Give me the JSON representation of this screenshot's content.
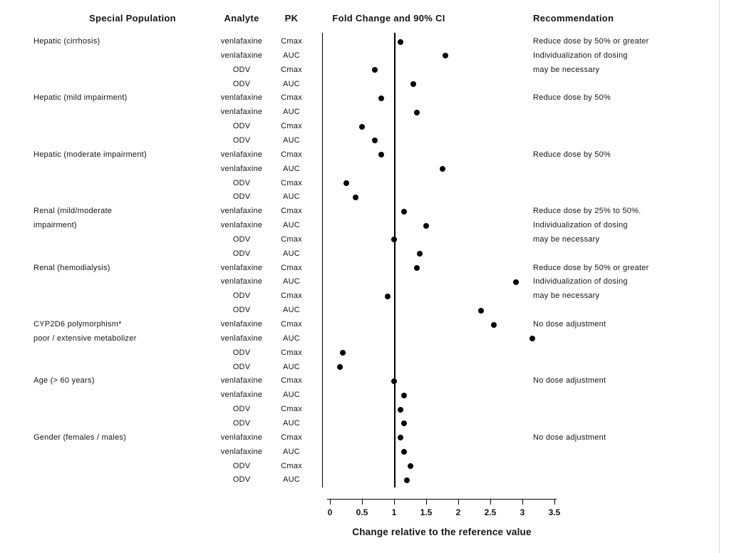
{
  "headers": {
    "population": "Special Population",
    "analyte": "Analyte",
    "pk": "PK",
    "fold_change": "Fold Change and 90% CI",
    "recommendation": "Recommendation"
  },
  "chart_data": {
    "type": "scatter",
    "title": "Fold Change and 90% CI",
    "xlabel": "Change relative to the reference value",
    "xlim": [
      -0.12,
      3.5
    ],
    "x_ticks": [
      0,
      0.5,
      1,
      1.5,
      2,
      2.5,
      3,
      3.5
    ],
    "reference_line_x": 1.0,
    "grid": false,
    "marker_color": "#000000",
    "rows": [
      {
        "population": "Hepatic (cirrhosis)",
        "analyte": "venlafaxine",
        "pk": "Cmax",
        "fold_change": 1.1,
        "recommendation": "Reduce dose by 50% or greater"
      },
      {
        "population": "",
        "analyte": "venlafaxine",
        "pk": "AUC",
        "fold_change": 1.8,
        "recommendation": "Individualization of dosing"
      },
      {
        "population": "",
        "analyte": "ODV",
        "pk": "Cmax",
        "fold_change": 0.7,
        "recommendation": "may be necessary"
      },
      {
        "population": "",
        "analyte": "ODV",
        "pk": "AUC",
        "fold_change": 1.3,
        "recommendation": ""
      },
      {
        "population": "Hepatic (mild impairment)",
        "analyte": "venlafaxine",
        "pk": "Cmax",
        "fold_change": 0.8,
        "recommendation": "Reduce dose by 50%"
      },
      {
        "population": "",
        "analyte": "venlafaxine",
        "pk": "AUC",
        "fold_change": 1.35,
        "recommendation": ""
      },
      {
        "population": "",
        "analyte": "ODV",
        "pk": "Cmax",
        "fold_change": 0.5,
        "recommendation": ""
      },
      {
        "population": "",
        "analyte": "ODV",
        "pk": "AUC",
        "fold_change": 0.7,
        "recommendation": ""
      },
      {
        "population": "Hepatic (moderate impairment)",
        "analyte": "venlafaxine",
        "pk": "Cmax",
        "fold_change": 0.8,
        "recommendation": "Reduce dose by 50%"
      },
      {
        "population": "",
        "analyte": "venlafaxine",
        "pk": "AUC",
        "fold_change": 1.75,
        "recommendation": ""
      },
      {
        "population": "",
        "analyte": "ODV",
        "pk": "Cmax",
        "fold_change": 0.25,
        "recommendation": ""
      },
      {
        "population": "",
        "analyte": "ODV",
        "pk": "AUC",
        "fold_change": 0.4,
        "recommendation": ""
      },
      {
        "population": "Renal (mild/moderate",
        "analyte": "venlafaxine",
        "pk": "Cmax",
        "fold_change": 1.15,
        "recommendation": "Reduce dose by 25% to 50%."
      },
      {
        "population": "impairment)",
        "analyte": "venlafaxine",
        "pk": "AUC",
        "fold_change": 1.5,
        "recommendation": "Individualization of dosing"
      },
      {
        "population": "",
        "analyte": "ODV",
        "pk": "Cmax",
        "fold_change": 1.0,
        "recommendation": "may be necessary"
      },
      {
        "population": "",
        "analyte": "ODV",
        "pk": "AUC",
        "fold_change": 1.4,
        "recommendation": ""
      },
      {
        "population": "Renal (hemodialysis)",
        "analyte": "venlafaxine",
        "pk": "Cmax",
        "fold_change": 1.35,
        "recommendation": "Reduce dose by 50% or greater"
      },
      {
        "population": "",
        "analyte": "venlafaxine",
        "pk": "AUC",
        "fold_change": 2.9,
        "recommendation": "Individualization of dosing"
      },
      {
        "population": "",
        "analyte": "ODV",
        "pk": "Cmax",
        "fold_change": 0.9,
        "recommendation": "may be necessary"
      },
      {
        "population": "",
        "analyte": "ODV",
        "pk": "AUC",
        "fold_change": 2.35,
        "recommendation": ""
      },
      {
        "population": "CYP2D6 polymorphism*",
        "analyte": "venlafaxine",
        "pk": "Cmax",
        "fold_change": 2.55,
        "recommendation": "No dose adjustment"
      },
      {
        "population": "poor / extensive metabolizer",
        "analyte": "venlafaxine",
        "pk": "AUC",
        "fold_change": 3.15,
        "recommendation": ""
      },
      {
        "population": "",
        "analyte": "ODV",
        "pk": "Cmax",
        "fold_change": 0.2,
        "recommendation": ""
      },
      {
        "population": "",
        "analyte": "ODV",
        "pk": "AUC",
        "fold_change": 0.15,
        "recommendation": ""
      },
      {
        "population": "Age (> 60 years)",
        "analyte": "venlafaxine",
        "pk": "Cmax",
        "fold_change": 1.0,
        "recommendation": "No dose adjustment"
      },
      {
        "population": "",
        "analyte": "venlafaxine",
        "pk": "AUC",
        "fold_change": 1.15,
        "recommendation": ""
      },
      {
        "population": "",
        "analyte": "ODV",
        "pk": "Cmax",
        "fold_change": 1.1,
        "recommendation": ""
      },
      {
        "population": "",
        "analyte": "ODV",
        "pk": "AUC",
        "fold_change": 1.15,
        "recommendation": ""
      },
      {
        "population": "Gender (females / males)",
        "analyte": "venlafaxine",
        "pk": "Cmax",
        "fold_change": 1.1,
        "recommendation": "No dose adjustment"
      },
      {
        "population": "",
        "analyte": "venlafaxine",
        "pk": "AUC",
        "fold_change": 1.15,
        "recommendation": ""
      },
      {
        "population": "",
        "analyte": "ODV",
        "pk": "Cmax",
        "fold_change": 1.25,
        "recommendation": ""
      },
      {
        "population": "",
        "analyte": "ODV",
        "pk": "AUC",
        "fold_change": 1.2,
        "recommendation": ""
      }
    ]
  }
}
